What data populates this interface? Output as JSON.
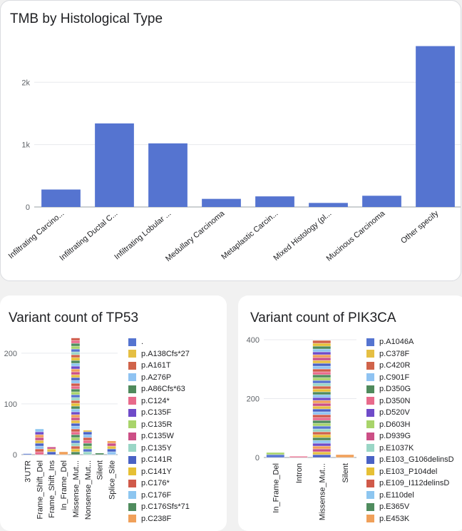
{
  "charts": {
    "tmb": {
      "title": "TMB by Histological Type"
    },
    "tp53": {
      "title": "Variant count of TP53"
    },
    "pik3ca": {
      "title": "Variant count of PIK3CA"
    }
  },
  "legend_palette": [
    "#5574d0",
    "#e5bf43",
    "#d0634a",
    "#8fc3f2",
    "#4f8a5c",
    "#e86a8b",
    "#6f4bc9",
    "#a8d46a",
    "#cc4f86",
    "#9ad6c6",
    "#4a62c5",
    "#e6c035",
    "#d05a4a",
    "#8dc6f0",
    "#4f8c5e",
    "#f0a05a"
  ],
  "chart_data": [
    {
      "id": "tmb",
      "type": "bar",
      "title": "TMB by Histological Type",
      "categories": [
        "Infiltrating Carcino...",
        "Infiltrating Ductal C...",
        "Infiltrating Lobular ...",
        "Medullary Carcinoma",
        "Metaplastic Carcin...",
        "Mixed Histology (pl...",
        "Mucinous Carcinoma",
        "Other  specify"
      ],
      "values": [
        280,
        1340,
        1020,
        130,
        170,
        65,
        180,
        2580
      ],
      "ylim": [
        0,
        2850
      ],
      "yticks": [
        0,
        1000,
        2000
      ],
      "ytick_labels": [
        "0",
        "1k",
        "2k"
      ],
      "color": "#5574d0",
      "xlabel": "",
      "ylabel": ""
    },
    {
      "id": "tp53",
      "type": "bar",
      "stacked": true,
      "title": "Variant count of TP53",
      "categories": [
        "3'UTR",
        "Frame_Shift_Del",
        "Frame_Shift_Ins",
        "In_Frame_Del",
        "Missense_Mut...",
        "Nonsense_Mut...",
        "Silent",
        "Splice_Site"
      ],
      "values": [
        2,
        51,
        15,
        6,
        230,
        48,
        3,
        27
      ],
      "ylim": [
        0,
        235
      ],
      "yticks": [
        0,
        100,
        200
      ],
      "ytick_labels": [
        "0",
        "100",
        "200"
      ],
      "legend": [
        ".",
        "p.A138Cfs*27",
        "p.A161T",
        "p.A276P",
        "p.A86Cfs*63",
        "p.C124*",
        "p.C135F",
        "p.C135R",
        "p.C135W",
        "p.C135Y",
        "p.C141R",
        "p.C141Y",
        "p.C176*",
        "p.C176F",
        "p.C176Sfs*71",
        "p.C238F"
      ],
      "xlabel": "",
      "ylabel": ""
    },
    {
      "id": "pik3ca",
      "type": "bar",
      "stacked": true,
      "title": "Variant count of PIK3CA",
      "categories": [
        "In_Frame_Del",
        "Intron",
        "Missense_Mut...",
        "Silent"
      ],
      "values": [
        17,
        4,
        398,
        10
      ],
      "ylim": [
        0,
        405
      ],
      "yticks": [
        0,
        200,
        400
      ],
      "ytick_labels": [
        "0",
        "200",
        "400"
      ],
      "legend": [
        "p.A1046A",
        "p.C378F",
        "p.C420R",
        "p.C901F",
        "p.D350G",
        "p.D350N",
        "p.D520V",
        "p.D603H",
        "p.D939G",
        "p.E1037K",
        "p.E103_G106delinsD",
        "p.E103_P104del",
        "p.E109_I112delinsD",
        "p.E110del",
        "p.E365V",
        "p.E453K"
      ],
      "xlabel": "",
      "ylabel": ""
    }
  ]
}
